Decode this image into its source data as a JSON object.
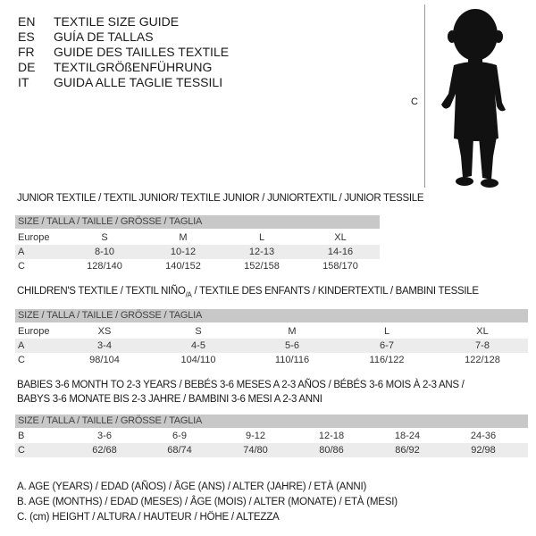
{
  "languages": [
    {
      "code": "EN",
      "text": "TEXTILE SIZE GUIDE"
    },
    {
      "code": "ES",
      "text": "GUÍA DE TALLAS"
    },
    {
      "code": "FR",
      "text": "GUIDE DES TAILLES TEXTILE"
    },
    {
      "code": "DE",
      "text": "TEXTILGRÖßENFÜHRUNG"
    },
    {
      "code": "IT",
      "text": "GUIDA ALLE TAGLIE TESSILI"
    }
  ],
  "figure": {
    "measure_label": "C"
  },
  "size_header": "SIZE / TALLA / TAILLE / GRÖSSE / TAGLIA",
  "junior": {
    "title": "JUNIOR TEXTILE / TEXTIL JUNIOR/ TEXTILE JUNIOR / JUNIORTEXTIL / JUNIOR TESSILE",
    "rows": [
      {
        "label": "Europe",
        "values": [
          "S",
          "M",
          "L",
          "XL"
        ]
      },
      {
        "label": "A",
        "values": [
          "8-10",
          "10-12",
          "12-13",
          "14-16"
        ]
      },
      {
        "label": "C",
        "values": [
          "128/140",
          "140/152",
          "152/158",
          "158/170"
        ]
      }
    ]
  },
  "children": {
    "title_a": "CHILDREN'S TEXTILE / TEXTIL NIÑO",
    "title_sub": "/A",
    "title_b": " / TEXTILE DES ENFANTS / KINDERTEXTIL / BAMBINI TESSILE",
    "rows": [
      {
        "label": "Europe",
        "values": [
          "XS",
          "S",
          "M",
          "L",
          "XL"
        ]
      },
      {
        "label": "A",
        "values": [
          "3-4",
          "4-5",
          "5-6",
          "6-7",
          "7-8"
        ]
      },
      {
        "label": "C",
        "values": [
          "98/104",
          "104/110",
          "110/116",
          "116/122",
          "122/128"
        ]
      }
    ]
  },
  "babies": {
    "title_line1": "BABIES 3-6 MONTH TO 2-3 YEARS / BEBÉS 3-6 MESES A 2-3 AÑOS / BÉBÉS 3-6 MOIS À 2-3 ANS /",
    "title_line2": "BABYS 3-6 MONATE BIS 2-3 JAHRE / BAMBINI 3-6 MESI A 2-3 ANNI",
    "rows": [
      {
        "label": "B",
        "values": [
          "3-6",
          "6-9",
          "9-12",
          "12-18",
          "18-24",
          "24-36"
        ]
      },
      {
        "label": "C",
        "values": [
          "62/68",
          "68/74",
          "74/80",
          "80/86",
          "86/92",
          "92/98"
        ]
      }
    ]
  },
  "legend": [
    "A. AGE (YEARS) / EDAD (AÑOS) / ÂGE (ANS) / ALTER (JAHRE) / ETÀ (ANNI)",
    "B. AGE (MONTHS) / EDAD (MESES) / ÂGE (MOIS) / ALTER (MONATE) / ETÀ (MESI)",
    "C. (cm) HEIGHT / ALTURA / HAUTEUR / HÖHE / ALTEZZA"
  ]
}
